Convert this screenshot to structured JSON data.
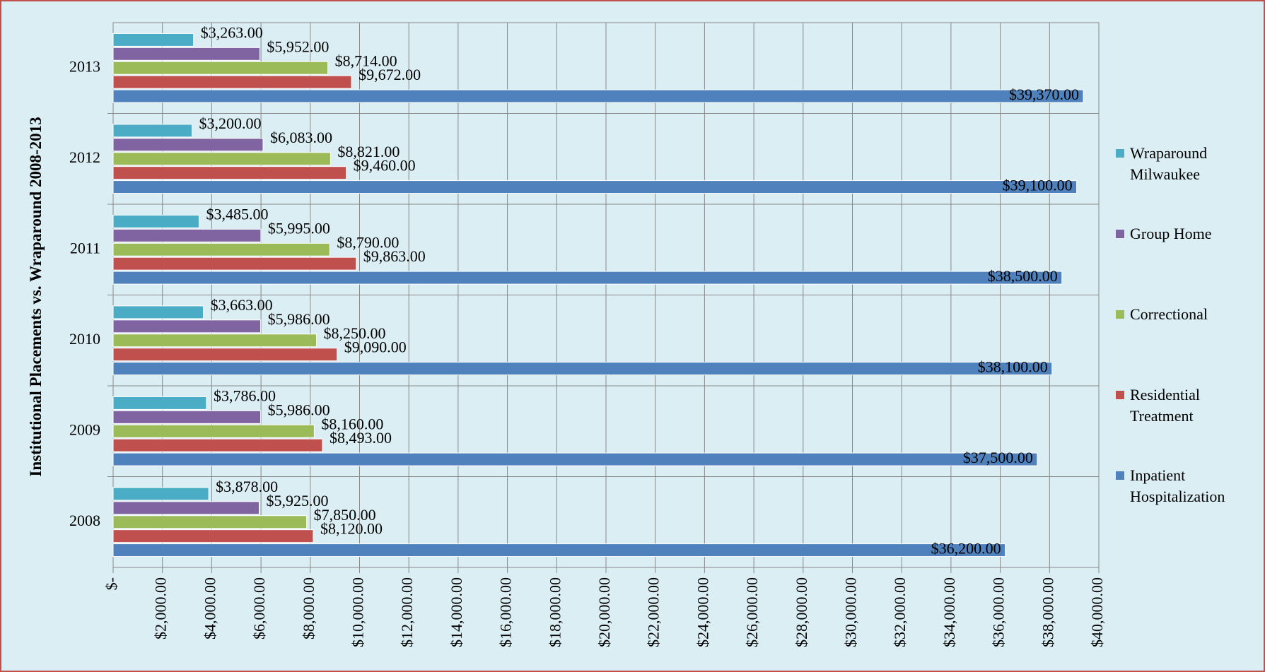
{
  "chart_data": {
    "type": "barh",
    "ylabel": "Institutional Placements vs. Wraparound 2008-2013",
    "categories": [
      "2008",
      "2009",
      "2010",
      "2011",
      "2012",
      "2013"
    ],
    "series": [
      {
        "name": "Inpatient Hospitalization",
        "color": "#4f81bd",
        "values": [
          36200,
          37500,
          38100,
          38500,
          39100,
          39370
        ],
        "value_labels": [
          "$36,200.00",
          "$37,500.00",
          "$38,100.00",
          "$38,500.00",
          "$39,100.00",
          "$39,370.00"
        ]
      },
      {
        "name": "Residential Treatment",
        "color": "#c0504d",
        "values": [
          8120,
          8493,
          9090,
          9863,
          9460,
          9672
        ],
        "value_labels": [
          "$8,120.00",
          "$8,493.00",
          "$9,090.00",
          "$9,863.00",
          "$9,460.00",
          "$9,672.00"
        ]
      },
      {
        "name": "Correctional",
        "color": "#9bbb59",
        "values": [
          7850,
          8160,
          8250,
          8790,
          8821,
          8714
        ],
        "value_labels": [
          "$7,850.00",
          "$8,160.00",
          "$8,250.00",
          "$8,790.00",
          "$8,821.00",
          "$8,714.00"
        ]
      },
      {
        "name": "Group Home",
        "color": "#8064a2",
        "values": [
          5925,
          5986,
          5986,
          5995,
          6083,
          5952
        ],
        "value_labels": [
          "$5,925.00",
          "$5,986.00",
          "$5,986.00",
          "$5,995.00",
          "$6,083.00",
          "$5,952.00"
        ]
      },
      {
        "name": "Wraparound Milwaukee",
        "color": "#4bacc6",
        "values": [
          3878,
          3786,
          3663,
          3485,
          3200,
          3263
        ],
        "value_labels": [
          "$3,878.00",
          "$3,786.00",
          "$3,663.00",
          "$3,485.00",
          "$3,200.00",
          "$3,263.00"
        ]
      }
    ],
    "xlim": [
      0,
      40000
    ],
    "xticks": [
      {
        "value": 0,
        "label": "$-"
      },
      {
        "value": 2000,
        "label": "$2,000.00"
      },
      {
        "value": 4000,
        "label": "$4,000.00"
      },
      {
        "value": 6000,
        "label": "$6,000.00"
      },
      {
        "value": 8000,
        "label": "$8,000.00"
      },
      {
        "value": 10000,
        "label": "$10,000.00"
      },
      {
        "value": 12000,
        "label": "$12,000.00"
      },
      {
        "value": 14000,
        "label": "$14,000.00"
      },
      {
        "value": 16000,
        "label": "$16,000.00"
      },
      {
        "value": 18000,
        "label": "$18,000.00"
      },
      {
        "value": 20000,
        "label": "$20,000.00"
      },
      {
        "value": 22000,
        "label": "$22,000.00"
      },
      {
        "value": 24000,
        "label": "$24,000.00"
      },
      {
        "value": 26000,
        "label": "$26,000.00"
      },
      {
        "value": 28000,
        "label": "$28,000.00"
      },
      {
        "value": 30000,
        "label": "$30,000.00"
      },
      {
        "value": 32000,
        "label": "$32,000.00"
      },
      {
        "value": 34000,
        "label": "$34,000.00"
      },
      {
        "value": 36000,
        "label": "$36,000.00"
      },
      {
        "value": 38000,
        "label": "$38,000.00"
      },
      {
        "value": 40000,
        "label": "$40,000.00"
      }
    ],
    "grid": true,
    "legend": "right"
  }
}
